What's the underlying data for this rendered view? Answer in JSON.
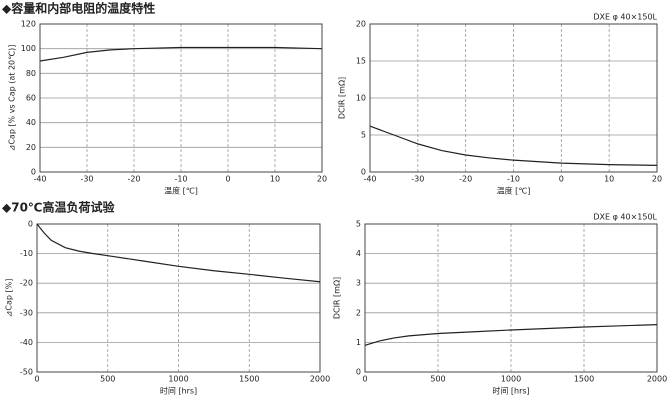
{
  "headings": [
    "◆容量和内部电阻的温度特性",
    "◆70℃高温负荷试验"
  ],
  "chart_data": [
    {
      "type": "line",
      "x_label": "温度 [℃]",
      "y_label": "⊿Cap [% vs Cap (at 20℃)]",
      "x": [
        -40,
        -35,
        -30,
        -25,
        -20,
        -10,
        0,
        10,
        20
      ],
      "values": [
        90,
        93,
        97,
        99,
        100,
        101,
        101,
        101,
        100
      ],
      "color": "#222222",
      "xlim": [
        -40,
        20
      ],
      "xticks": [
        -40,
        -30,
        -20,
        -10,
        0,
        10,
        20
      ],
      "ylim": [
        0,
        120
      ],
      "yticks": [
        0,
        20,
        40,
        60,
        80,
        100,
        120
      ],
      "grid": true
    },
    {
      "type": "line",
      "annotation": "DXE φ 40×150L",
      "x_label": "温度 [℃]",
      "y_label": "DCIR [mΩ]",
      "x": [
        -40,
        -35,
        -30,
        -25,
        -20,
        -15,
        -10,
        -5,
        0,
        5,
        10,
        15,
        20
      ],
      "values": [
        6.2,
        5.0,
        3.8,
        2.9,
        2.3,
        1.9,
        1.6,
        1.4,
        1.2,
        1.1,
        1.0,
        0.95,
        0.9
      ],
      "color": "#222222",
      "xlim": [
        -40,
        20
      ],
      "xticks": [
        -40,
        -30,
        -20,
        -10,
        0,
        10,
        20
      ],
      "ylim": [
        0,
        20
      ],
      "yticks": [
        0,
        5,
        10,
        15,
        20
      ],
      "grid": true
    },
    {
      "type": "line",
      "x_label": "时间 [hrs]",
      "y_label": "⊿Cap [%]",
      "x": [
        0,
        50,
        100,
        200,
        300,
        400,
        500,
        750,
        1000,
        1250,
        1500,
        1750,
        2000
      ],
      "values": [
        0,
        -3,
        -5.5,
        -8,
        -9.2,
        -10,
        -10.7,
        -12.5,
        -14.3,
        -15.8,
        -17,
        -18.3,
        -19.5
      ],
      "color": "#222222",
      "xlim": [
        0,
        2000
      ],
      "xticks": [
        0,
        500,
        1000,
        1500,
        2000
      ],
      "ylim": [
        -50,
        0
      ],
      "yticks": [
        -50,
        -40,
        -30,
        -20,
        -10,
        0
      ],
      "grid": true
    },
    {
      "type": "line",
      "annotation": "DXE φ 40×150L",
      "x_label": "时间 [hrs]",
      "y_label": "DCIR [mΩ]",
      "x": [
        0,
        100,
        200,
        300,
        500,
        750,
        1000,
        1250,
        1500,
        1750,
        2000
      ],
      "values": [
        0.9,
        1.05,
        1.15,
        1.22,
        1.3,
        1.36,
        1.42,
        1.47,
        1.52,
        1.56,
        1.6
      ],
      "color": "#222222",
      "xlim": [
        0,
        2000
      ],
      "xticks": [
        0,
        500,
        1000,
        1500,
        2000
      ],
      "ylim": [
        0,
        5
      ],
      "yticks": [
        0,
        1,
        2,
        3,
        4,
        5
      ],
      "grid": true
    }
  ]
}
